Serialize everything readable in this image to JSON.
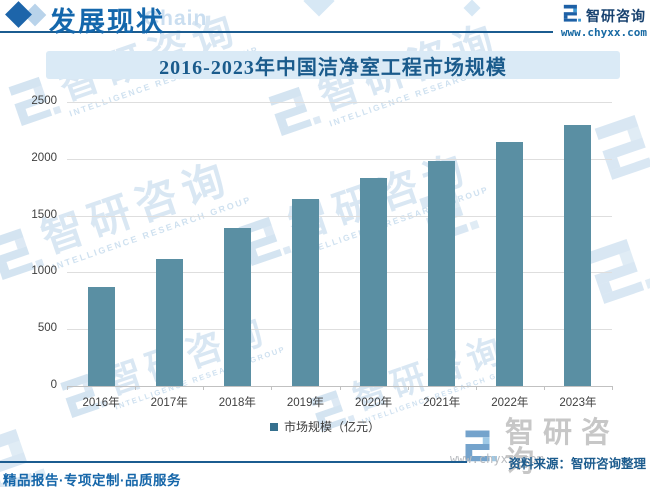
{
  "header": {
    "section_title": "发展现状",
    "section_watermark": "Chain",
    "brand_name": "智研咨询",
    "brand_url": "www.chyxx.com"
  },
  "chart_data": {
    "type": "bar",
    "title": "2016-2023年中国洁净室工程市场规模",
    "categories": [
      "2016年",
      "2017年",
      "2018年",
      "2019年",
      "2020年",
      "2021年",
      "2022年",
      "2023年"
    ],
    "values": [
      875,
      1115,
      1395,
      1650,
      1830,
      1985,
      2150,
      2300
    ],
    "series_name": "市场规模（亿元）",
    "unit": "亿元",
    "ylim": [
      0,
      2500
    ],
    "yticks": [
      0,
      500,
      1000,
      1500,
      2000,
      2500
    ],
    "grid": true,
    "legend_position": "bottom",
    "bar_color": "#5a8fa3",
    "legend_marker_color": "#35708e"
  },
  "footer": {
    "source": "资料来源：智研咨询整理",
    "slogan": "精品报告·专项定制·品质服务"
  },
  "watermark": {
    "brand": "智研咨询",
    "subtitle": "INTELLIGENCE RESEARCH GROUP",
    "url": "www.chyxx.com"
  }
}
